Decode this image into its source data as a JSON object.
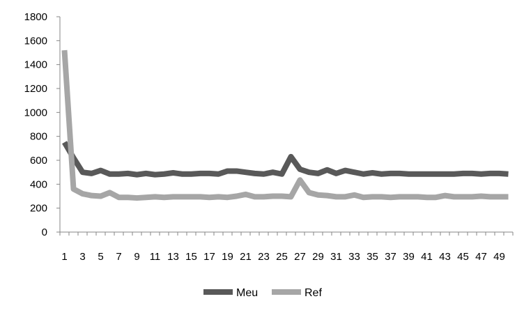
{
  "chart_data": {
    "type": "line",
    "x": [
      1,
      2,
      3,
      4,
      5,
      6,
      7,
      8,
      9,
      10,
      11,
      12,
      13,
      14,
      15,
      16,
      17,
      18,
      19,
      20,
      21,
      22,
      23,
      24,
      25,
      26,
      27,
      28,
      29,
      30,
      31,
      32,
      33,
      34,
      35,
      36,
      37,
      38,
      39,
      40,
      41,
      42,
      43,
      44,
      45,
      46,
      47,
      48,
      49,
      50
    ],
    "x_tick_labels": [
      "1",
      "3",
      "5",
      "7",
      "9",
      "11",
      "13",
      "15",
      "17",
      "19",
      "21",
      "23",
      "25",
      "27",
      "29",
      "31",
      "33",
      "35",
      "37",
      "39",
      "41",
      "43",
      "45",
      "47",
      "49"
    ],
    "ylim": [
      0,
      1800
    ],
    "y_ticks": [
      0,
      200,
      400,
      600,
      800,
      1000,
      1200,
      1400,
      1600,
      1800
    ],
    "grid": false,
    "legend_position": "bottom",
    "series": [
      {
        "name": "Meu",
        "color": "#595959",
        "values": [
          750,
          620,
          500,
          490,
          515,
          485,
          485,
          490,
          480,
          490,
          480,
          485,
          495,
          485,
          485,
          490,
          490,
          485,
          510,
          510,
          500,
          490,
          485,
          500,
          485,
          630,
          525,
          500,
          490,
          520,
          490,
          515,
          500,
          485,
          495,
          485,
          490,
          490,
          485,
          485,
          485,
          485,
          485,
          485,
          490,
          490,
          485,
          490,
          490,
          485
        ]
      },
      {
        "name": "Ref",
        "color": "#a6a6a6",
        "values": [
          1520,
          360,
          320,
          305,
          300,
          330,
          290,
          290,
          285,
          290,
          295,
          290,
          295,
          295,
          295,
          295,
          290,
          295,
          290,
          300,
          315,
          295,
          295,
          300,
          300,
          295,
          435,
          330,
          310,
          305,
          295,
          295,
          310,
          290,
          295,
          295,
          290,
          295,
          295,
          295,
          290,
          290,
          305,
          295,
          295,
          295,
          300,
          295,
          295,
          295
        ]
      }
    ]
  }
}
